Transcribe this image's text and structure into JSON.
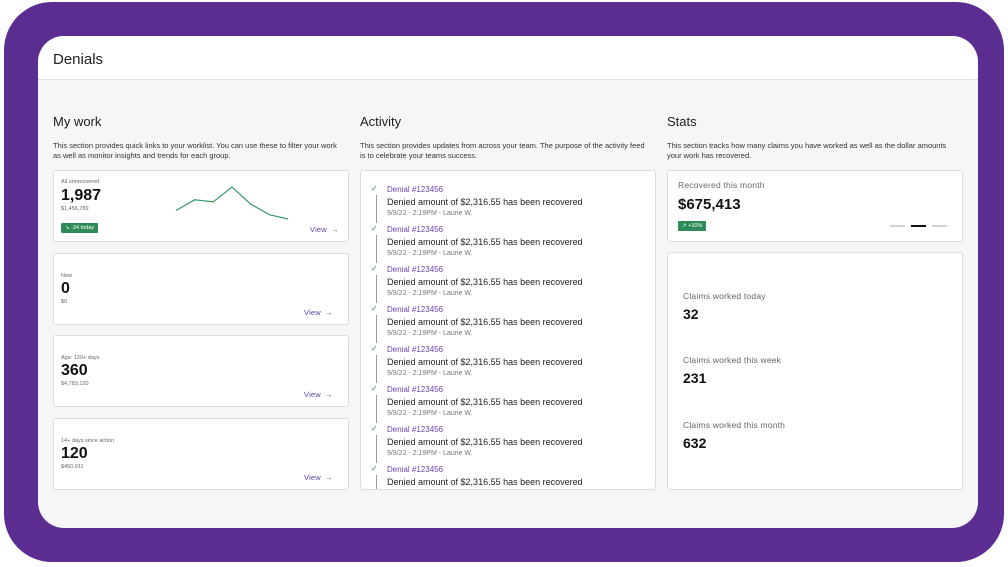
{
  "page": {
    "title": "Denials"
  },
  "my_work": {
    "title": "My work",
    "description": "This section provides quick links to your worklist. You can use these to filter your work as well as monitor insights and trends for each group.",
    "cards": [
      {
        "label": "All unrecovered",
        "count": "1,987",
        "amount": "$1,456,789",
        "badge": "-24 today",
        "view": "View",
        "sparkline": [
          42,
          47,
          46,
          53,
          45,
          40,
          38
        ]
      },
      {
        "label": "New",
        "count": "0",
        "amount": "$0",
        "view": "View"
      },
      {
        "label": "Age: 120+ days",
        "count": "360",
        "amount": "$4,783,120",
        "view": "View"
      },
      {
        "label": "14+ days since action",
        "count": "120",
        "amount": "$450,911",
        "view": "View"
      }
    ]
  },
  "activity": {
    "title": "Activity",
    "description": "This section provides updates from across your team. The purpose of the activity feed is to celebrate your teams success.",
    "items": [
      {
        "link": "Denial #123456",
        "text": "Denied amount of $2,316.55 has been recovered",
        "meta": "9/8/22 - 2:19PM - Laurie W."
      },
      {
        "link": "Denial #123456",
        "text": "Denied amount of $2,316.55 has been recovered",
        "meta": "9/8/22 - 2:19PM - Laurie W."
      },
      {
        "link": "Denial #123456",
        "text": "Denied amount of $2,316.55 has been recovered",
        "meta": "9/8/22 - 2:19PM - Laurie W."
      },
      {
        "link": "Denial #123456",
        "text": "Denied amount of $2,316.55 has been recovered",
        "meta": "9/8/22 - 2:19PM - Laurie W."
      },
      {
        "link": "Denial #123456",
        "text": "Denied amount of $2,316.55 has been recovered",
        "meta": "9/8/22 - 2:19PM - Laurie W."
      },
      {
        "link": "Denial #123456",
        "text": "Denied amount of $2,316.55 has been recovered",
        "meta": "9/8/22 - 2:19PM - Laurie W."
      },
      {
        "link": "Denial #123456",
        "text": "Denied amount of $2,316.55 has been recovered",
        "meta": "9/8/22 - 2:19PM - Laurie W."
      },
      {
        "link": "Denial #123456",
        "text": "Denied amount of $2,316.55 has been recovered",
        "meta": ""
      }
    ]
  },
  "stats": {
    "title": "Stats",
    "description": "This section tracks how many claims you have worked as well as the dollar amounts your work has recovered.",
    "recovered": {
      "label": "Recovered this month",
      "value": "$675,413",
      "badge": "+10%",
      "carousel_active": 2,
      "carousel_total": 3
    },
    "claims": [
      {
        "label": "Claims worked today",
        "value": "32"
      },
      {
        "label": "Claims worked this week",
        "value": "231"
      },
      {
        "label": "Claims worked this month",
        "value": "632"
      }
    ]
  },
  "colors": {
    "frame": "#5b2d91",
    "accent": "#6a3fb8",
    "success": "#2e8b57"
  }
}
